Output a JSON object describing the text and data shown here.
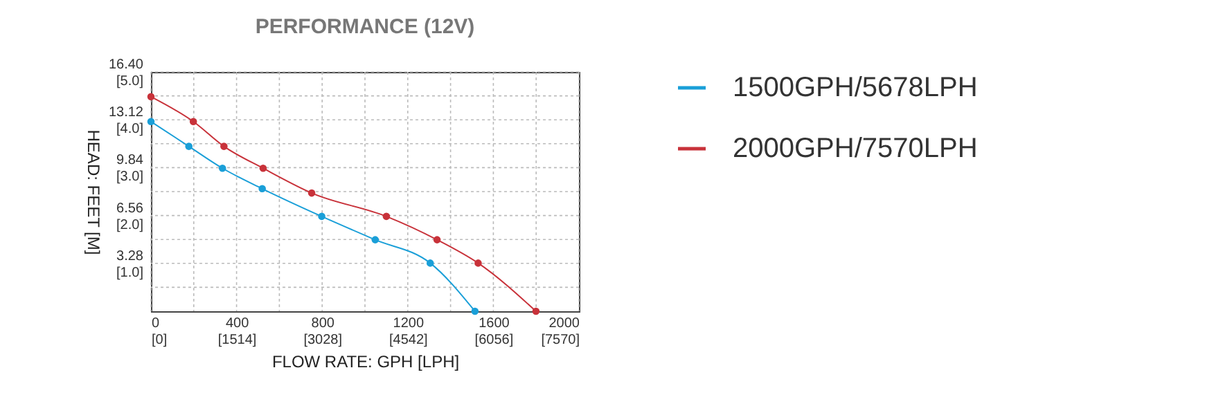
{
  "chart_data": {
    "type": "line",
    "title": "PERFORMANCE (12V)",
    "xlabel": "FLOW RATE: GPH [LPH]",
    "ylabel": "HEAD: FEET [M]",
    "xlim": [
      0,
      2000
    ],
    "xticks": [
      0,
      {
        "value": 200,
        "label": null
      },
      400,
      {
        "value": 600,
        "label": null
      },
      800,
      {
        "value": 1000,
        "label": null
      },
      1200,
      {
        "value": 1400,
        "label": null
      },
      1600,
      {
        "value": 1800,
        "label": null
      },
      2000
    ],
    "x2lim": [
      0,
      7570
    ],
    "x2ticks": [
      {
        "value": 0,
        "label": "[0]"
      },
      {
        "value": 1514,
        "label": "[1514]"
      },
      {
        "value": 3028,
        "label": "[3028]"
      },
      {
        "value": 4542,
        "label": "[4542]"
      },
      {
        "value": 6056,
        "label": "[6056]"
      },
      {
        "value": 7570,
        "label": "[7570]"
      }
    ],
    "ylim": [
      0,
      16.4
    ],
    "yticks": [
      {
        "value": 1.64,
        "label": null
      },
      3.28,
      {
        "value": 4.92,
        "label": null
      },
      6.56,
      {
        "value": 8.2,
        "label": null
      },
      9.84,
      {
        "value": 11.48,
        "label": null
      },
      13.12,
      {
        "value": 14.76,
        "label": null
      },
      {
        "value": 16.4,
        "label": "16.40"
      }
    ],
    "y2lim": [
      0,
      5
    ],
    "y2ticks": [
      {
        "value": 1,
        "label": "[1.0]"
      },
      {
        "value": 2,
        "label": "[2.0]"
      },
      {
        "value": 3,
        "label": "[3.0]"
      },
      {
        "value": 4,
        "label": "[4.0]"
      },
      {
        "value": 5,
        "label": "[5.0]"
      }
    ],
    "grid": true,
    "legend": "right",
    "marker": "circle",
    "line_style": "solid",
    "series": [
      {
        "name": "1500GPH/5678LPH",
        "color": "#1a9fd8",
        "x": [
          0,
          177,
          334,
          520,
          798,
          1048,
          1305,
          1514
        ],
        "values": [
          13.0,
          11.3,
          9.8,
          8.4,
          6.5,
          4.9,
          3.3,
          0
        ]
      },
      {
        "name": "2000GPH/7570LPH",
        "color": "#c8323a",
        "x": [
          0,
          198,
          341,
          524,
          751,
          1100,
          1337,
          1529,
          1799
        ],
        "values": [
          14.7,
          13.0,
          11.3,
          9.8,
          8.1,
          6.5,
          4.9,
          3.3,
          0
        ]
      }
    ]
  }
}
